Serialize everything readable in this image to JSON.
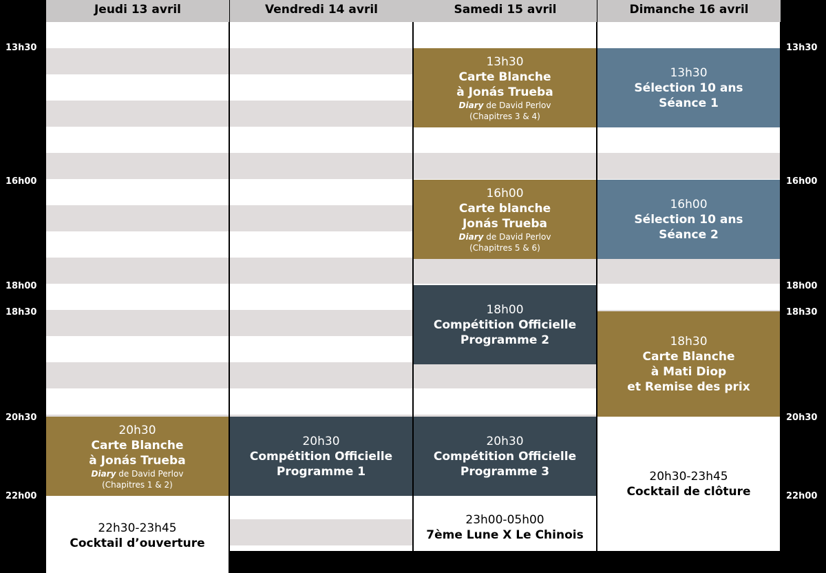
{
  "days": [
    {
      "label": "Jeudi 13 avril"
    },
    {
      "label": "Vendredi 14 avril"
    },
    {
      "label": "Samedi 15 avril"
    },
    {
      "label": "Dimanche 16 avril"
    }
  ],
  "time_labels": [
    "13h30",
    "16h00",
    "18h00",
    "18h30",
    "20h30",
    "22h00"
  ],
  "colors": {
    "gold": "#957a3d",
    "steel_blue": "#5d7b92",
    "dark_slate": "#394853",
    "stripe_light": "#ffffff",
    "stripe_grey": "#e0dcdc",
    "header_grey": "#c8c6c6"
  },
  "events": {
    "thu_2030": {
      "time": "20h30",
      "title1": "Carte Blanche",
      "title2": "à Jonás Trueba",
      "sub_em": "Diary",
      "sub_rest": " de David Perlov",
      "sub2": "(Chapitres 1 & 2)"
    },
    "thu_2230": {
      "time": "22h30-23h45",
      "title1": "Cocktail d’ouverture"
    },
    "fri_2030": {
      "time": "20h30",
      "title1": "Compétition Officielle",
      "title2": "Programme 1"
    },
    "sat_1330": {
      "time": "13h30",
      "title1": "Carte Blanche",
      "title2": "à Jonás Trueba",
      "sub_em": "Diary",
      "sub_rest": " de David Perlov",
      "sub2": "(Chapitres 3 & 4)"
    },
    "sat_1600": {
      "time": "16h00",
      "title1": "Carte blanche",
      "title2": "Jonás Trueba",
      "sub_em": "Diary",
      "sub_rest": " de David Perlov",
      "sub2": "(Chapitres 5 & 6)"
    },
    "sat_1800": {
      "time": "18h00",
      "title1": "Compétition Officielle",
      "title2": "Programme 2"
    },
    "sat_2030": {
      "time": "20h30",
      "title1": "Compétition Officielle",
      "title2": "Programme 3"
    },
    "sat_2300": {
      "time": "23h00-05h00",
      "title1": "7ème Lune X Le Chinois"
    },
    "sun_1330": {
      "time": "13h30",
      "title1": "Sélection 10 ans",
      "title2": "Séance 1"
    },
    "sun_1600": {
      "time": "16h00",
      "title1": "Sélection 10 ans",
      "title2": "Séance 2"
    },
    "sun_1830": {
      "time": "18h30",
      "title1": "Carte Blanche",
      "title2": "à Mati Diop",
      "title3": "et Remise des prix"
    },
    "sun_2030": {
      "time": "20h30-23h45",
      "title1": "Cocktail de clôture"
    }
  }
}
